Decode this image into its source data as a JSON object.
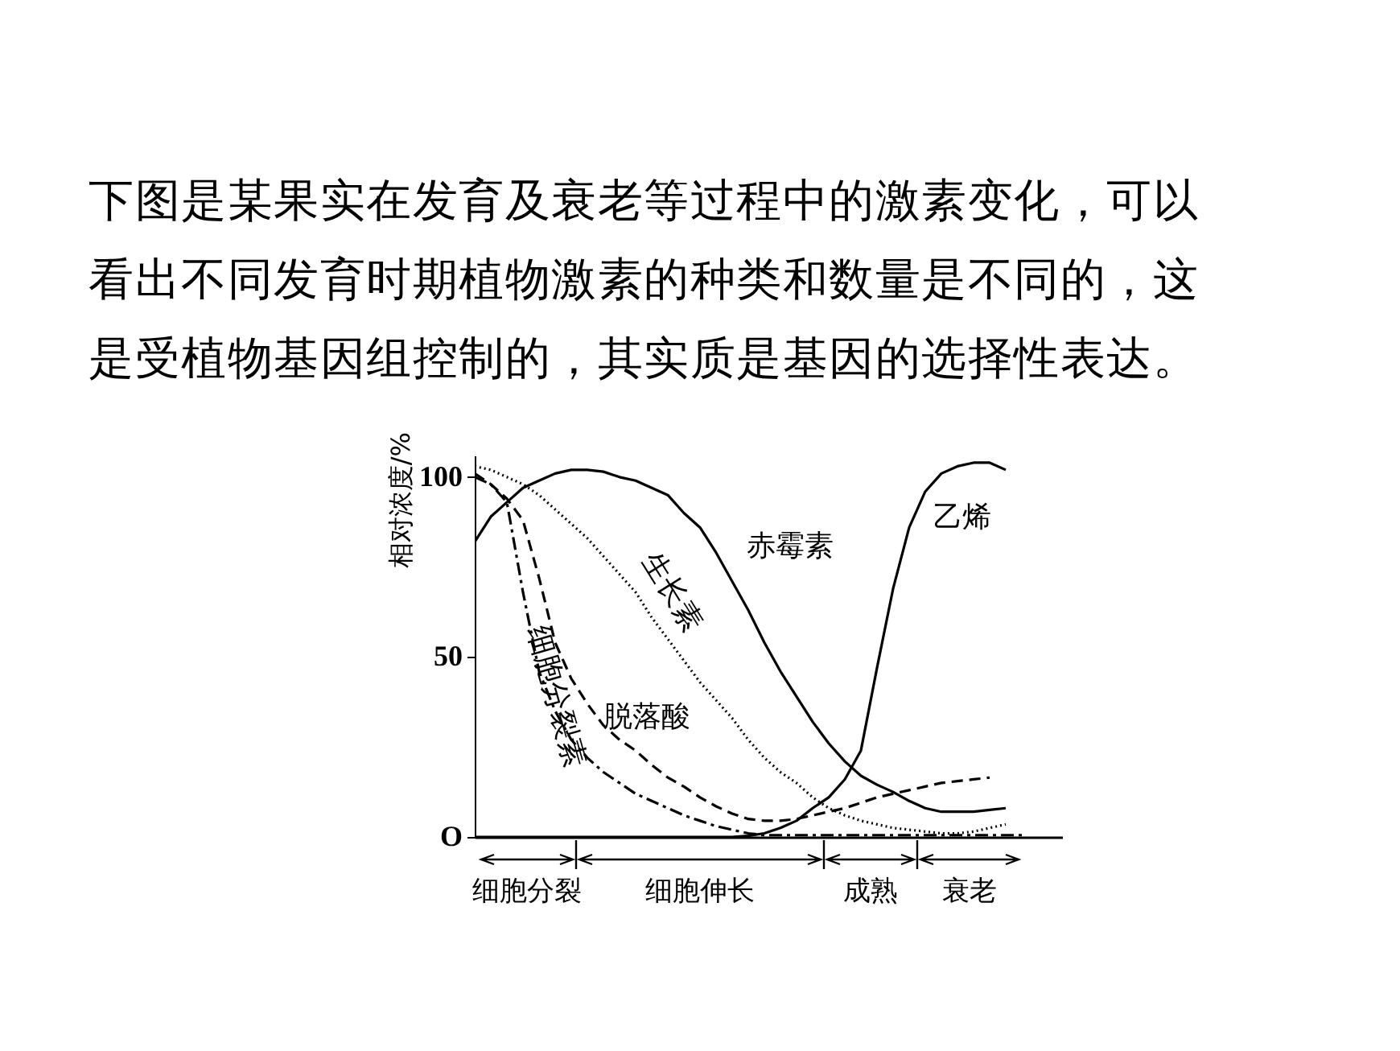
{
  "chart_data": {
    "type": "line",
    "title": "下图是某果实在发育及衰老等过程中的激素变化，可以看出不同发育时期植物激素的种类和数量是不同的，这是受植物基因组控制的，其实质是基因的选择性表达。",
    "ylabel": "相对浓度/%",
    "categories": [
      null,
      null,
      null,
      null,
      null,
      null,
      null,
      null,
      null,
      null,
      null,
      null,
      null,
      null,
      null,
      null,
      null,
      null,
      null,
      null,
      null,
      null,
      null,
      null,
      null,
      null,
      null,
      null,
      null,
      null,
      null,
      null,
      null,
      null,
      null
    ],
    "series": [
      {
        "name": "赤霉素",
        "color": "#000000",
        "line_style": "solid",
        "values": [
          82,
          89,
          93,
          97,
          99,
          101,
          102,
          102,
          101.5,
          100,
          99,
          97,
          95,
          90,
          86,
          79,
          71,
          63,
          54,
          46,
          39,
          32,
          26,
          21,
          17,
          14.5,
          12.5,
          10,
          8,
          7,
          7,
          7,
          7.5,
          8,
          null
        ]
      },
      {
        "name": "生长素",
        "color": "#000000",
        "line_style": "dotted",
        "values": [
          103,
          102,
          100,
          98,
          95,
          91,
          87,
          83,
          78,
          73,
          68,
          61,
          55,
          49,
          43,
          38,
          33,
          27,
          22,
          18,
          15,
          11,
          8,
          6,
          4.5,
          3.5,
          2.5,
          2,
          1.5,
          1,
          1,
          1.5,
          2.5,
          3.5,
          null
        ]
      },
      {
        "name": "脱落酸",
        "color": "#000000",
        "line_style": "dashed",
        "values": [
          101,
          98,
          94,
          88,
          72,
          54,
          44,
          37,
          31,
          27,
          24,
          20,
          16.5,
          14,
          11,
          8.5,
          6.5,
          5,
          4.5,
          4.5,
          5,
          6,
          7,
          8,
          9.5,
          11,
          12,
          13,
          14,
          15,
          15.5,
          16,
          16.5,
          null,
          null
        ]
      },
      {
        "name": "细胞分裂素",
        "color": "#000000",
        "line_style": "dashdot",
        "values": [
          100,
          98,
          93,
          68,
          46,
          35,
          27,
          22,
          18,
          15,
          12,
          10,
          8,
          6,
          4.5,
          3,
          2,
          1,
          0.5,
          0.5,
          0.5,
          0.5,
          0.5,
          0.5,
          0.5,
          0.5,
          0.5,
          0.5,
          0.5,
          0.5,
          0.5,
          0.5,
          0.5,
          0.5,
          0.5
        ]
      },
      {
        "name": "乙烯",
        "color": "#000000",
        "line_style": "solid",
        "values": [
          0,
          0,
          0,
          0,
          0,
          0,
          0,
          0,
          0,
          0,
          0,
          0,
          0,
          0,
          0,
          0,
          0,
          0.3,
          1,
          2.5,
          4.5,
          8,
          11,
          16,
          24,
          47,
          69,
          86,
          96,
          101,
          103,
          104,
          104,
          102,
          null
        ]
      }
    ],
    "ylim": [
      0,
      106
    ],
    "yticks": [
      {
        "value": 0,
        "label": "O"
      },
      50,
      100
    ],
    "annotations": [
      "细胞分裂",
      "细胞伸长",
      "成熟",
      "衰老"
    ],
    "grid": false,
    "marker": "none"
  }
}
